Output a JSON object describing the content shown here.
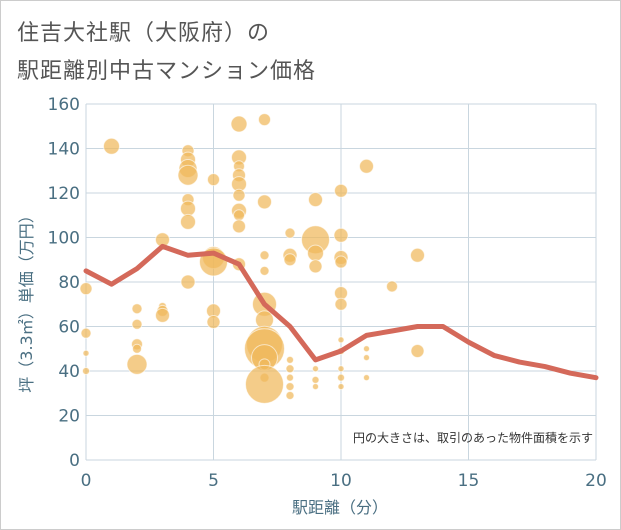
{
  "header": {
    "title_line1": "住吉大社駅（大阪府）の",
    "title_line2": "駅距離別中古マンション価格"
  },
  "note": "円の大きさは、取引のあった物件面積を示す",
  "colors": {
    "bubble": "#f0b95b",
    "line": "#d4695a",
    "grid": "#c9d6df",
    "axis_text": "#4a6f82"
  },
  "chart_data": {
    "type": "scatter",
    "title": "住吉大社駅（大阪府）の駅距離別中古マンション価格",
    "xlabel": "駅距離（分）",
    "ylabel": "坪（3.3㎡）単価（万円）",
    "xlim": [
      0,
      20
    ],
    "ylim": [
      0,
      160
    ],
    "xticks": [
      "0",
      "5",
      "10",
      "15",
      "20"
    ],
    "yticks": [
      "0",
      "20",
      "40",
      "60",
      "80",
      "100",
      "120",
      "140",
      "160"
    ],
    "grid": true,
    "bubbles": [
      {
        "x": 0,
        "y": 77,
        "s": 12
      },
      {
        "x": 0,
        "y": 57,
        "s": 10
      },
      {
        "x": 0,
        "y": 48,
        "s": 6
      },
      {
        "x": 0,
        "y": 40,
        "s": 7
      },
      {
        "x": 1,
        "y": 141,
        "s": 16
      },
      {
        "x": 2,
        "y": 68,
        "s": 10
      },
      {
        "x": 2,
        "y": 61,
        "s": 10
      },
      {
        "x": 2,
        "y": 52,
        "s": 11
      },
      {
        "x": 2,
        "y": 50,
        "s": 9
      },
      {
        "x": 2,
        "y": 43,
        "s": 20
      },
      {
        "x": 3,
        "y": 99,
        "s": 14
      },
      {
        "x": 3,
        "y": 69,
        "s": 8
      },
      {
        "x": 3,
        "y": 67,
        "s": 11
      },
      {
        "x": 3,
        "y": 65,
        "s": 14
      },
      {
        "x": 4,
        "y": 139,
        "s": 12
      },
      {
        "x": 4,
        "y": 135,
        "s": 15
      },
      {
        "x": 4,
        "y": 131,
        "s": 18
      },
      {
        "x": 4,
        "y": 128,
        "s": 20
      },
      {
        "x": 4,
        "y": 117,
        "s": 12
      },
      {
        "x": 4,
        "y": 113,
        "s": 15
      },
      {
        "x": 4,
        "y": 107,
        "s": 15
      },
      {
        "x": 4,
        "y": 80,
        "s": 14
      },
      {
        "x": 5,
        "y": 126,
        "s": 12
      },
      {
        "x": 5,
        "y": 91,
        "s": 22
      },
      {
        "x": 5,
        "y": 89,
        "s": 28
      },
      {
        "x": 5,
        "y": 67,
        "s": 14
      },
      {
        "x": 5,
        "y": 62,
        "s": 13
      },
      {
        "x": 6,
        "y": 151,
        "s": 16
      },
      {
        "x": 6,
        "y": 136,
        "s": 15
      },
      {
        "x": 6,
        "y": 132,
        "s": 11
      },
      {
        "x": 6,
        "y": 128,
        "s": 13
      },
      {
        "x": 6,
        "y": 124,
        "s": 15
      },
      {
        "x": 6,
        "y": 119,
        "s": 12
      },
      {
        "x": 6,
        "y": 112,
        "s": 15
      },
      {
        "x": 6,
        "y": 110,
        "s": 11
      },
      {
        "x": 6,
        "y": 105,
        "s": 13
      },
      {
        "x": 6,
        "y": 88,
        "s": 13
      },
      {
        "x": 7,
        "y": 153,
        "s": 12
      },
      {
        "x": 7,
        "y": 116,
        "s": 14
      },
      {
        "x": 7,
        "y": 92,
        "s": 9
      },
      {
        "x": 7,
        "y": 85,
        "s": 9
      },
      {
        "x": 7,
        "y": 70,
        "s": 24
      },
      {
        "x": 7,
        "y": 63,
        "s": 18
      },
      {
        "x": 7,
        "y": 52,
        "s": 36
      },
      {
        "x": 7,
        "y": 50,
        "s": 40
      },
      {
        "x": 7,
        "y": 46,
        "s": 26
      },
      {
        "x": 7,
        "y": 43,
        "s": 11
      },
      {
        "x": 7,
        "y": 37,
        "s": 9
      },
      {
        "x": 7,
        "y": 34,
        "s": 38
      },
      {
        "x": 8,
        "y": 102,
        "s": 10
      },
      {
        "x": 8,
        "y": 92,
        "s": 14
      },
      {
        "x": 8,
        "y": 90,
        "s": 12
      },
      {
        "x": 8,
        "y": 45,
        "s": 7
      },
      {
        "x": 8,
        "y": 41,
        "s": 8
      },
      {
        "x": 8,
        "y": 37,
        "s": 7
      },
      {
        "x": 8,
        "y": 33,
        "s": 8
      },
      {
        "x": 8,
        "y": 29,
        "s": 8
      },
      {
        "x": 9,
        "y": 117,
        "s": 14
      },
      {
        "x": 9,
        "y": 99,
        "s": 28
      },
      {
        "x": 9,
        "y": 93,
        "s": 16
      },
      {
        "x": 9,
        "y": 87,
        "s": 13
      },
      {
        "x": 9,
        "y": 41,
        "s": 6
      },
      {
        "x": 9,
        "y": 36,
        "s": 7
      },
      {
        "x": 9,
        "y": 33,
        "s": 6
      },
      {
        "x": 10,
        "y": 121,
        "s": 13
      },
      {
        "x": 10,
        "y": 101,
        "s": 14
      },
      {
        "x": 10,
        "y": 91,
        "s": 14
      },
      {
        "x": 10,
        "y": 89,
        "s": 12
      },
      {
        "x": 10,
        "y": 75,
        "s": 13
      },
      {
        "x": 10,
        "y": 70,
        "s": 12
      },
      {
        "x": 10,
        "y": 54,
        "s": 6
      },
      {
        "x": 10,
        "y": 49,
        "s": 7
      },
      {
        "x": 10,
        "y": 41,
        "s": 6
      },
      {
        "x": 10,
        "y": 37,
        "s": 7
      },
      {
        "x": 10,
        "y": 33,
        "s": 6
      },
      {
        "x": 11,
        "y": 132,
        "s": 14
      },
      {
        "x": 11,
        "y": 50,
        "s": 6
      },
      {
        "x": 11,
        "y": 46,
        "s": 6
      },
      {
        "x": 11,
        "y": 37,
        "s": 6
      },
      {
        "x": 12,
        "y": 78,
        "s": 11
      },
      {
        "x": 13,
        "y": 92,
        "s": 14
      },
      {
        "x": 13,
        "y": 49,
        "s": 13
      }
    ],
    "series": [
      {
        "x": [
          0,
          1,
          2,
          3,
          4,
          5,
          6,
          7,
          8,
          9,
          10,
          11,
          12,
          13,
          14,
          15,
          16,
          17,
          18,
          19,
          20
        ],
        "values": [
          85,
          79,
          86,
          96,
          92,
          93,
          88,
          70,
          60,
          45,
          49,
          56,
          58,
          60,
          60,
          53,
          47,
          44,
          42,
          39,
          37
        ]
      }
    ]
  }
}
